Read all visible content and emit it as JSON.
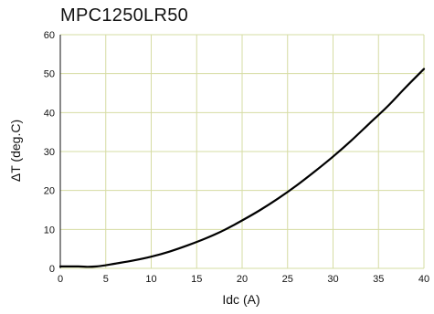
{
  "chart_data": {
    "type": "line",
    "title": "MPC1250LR50",
    "xlabel": "Idc (A)",
    "ylabel": "ΔT (deg.C)",
    "xlim": [
      0,
      40
    ],
    "ylim": [
      0,
      60
    ],
    "x_ticks": [
      "0",
      "5",
      "10",
      "15",
      "20",
      "25",
      "30",
      "35",
      "40"
    ],
    "y_ticks": [
      "0",
      "10",
      "20",
      "30",
      "40",
      "50",
      "60"
    ],
    "grid": true,
    "colors": {
      "grid": "#d6dca3",
      "line": "#000000",
      "axis": "#111111"
    },
    "series": [
      {
        "x": [
          0,
          2,
          3,
          4,
          5,
          6,
          8,
          10,
          12,
          14,
          16,
          18,
          20,
          22,
          24,
          26,
          28,
          30,
          32,
          34,
          36,
          38,
          40
        ],
        "values": [
          0.5,
          0.5,
          0.4,
          0.5,
          0.8,
          1.2,
          2.0,
          3.0,
          4.3,
          5.9,
          7.7,
          9.8,
          12.3,
          15.0,
          18.0,
          21.3,
          24.9,
          28.7,
          32.8,
          37.2,
          41.6,
          46.5,
          51.2
        ]
      }
    ]
  }
}
